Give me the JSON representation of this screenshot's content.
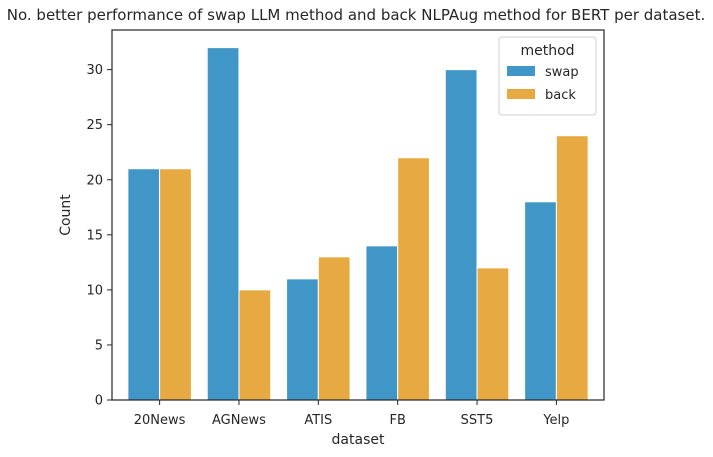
{
  "chart_data": {
    "type": "bar",
    "title": "No. better performance of swap LLM method and back NLPAug method for BERT per dataset.",
    "xlabel": "dataset",
    "ylabel": "Count",
    "categories": [
      "20News",
      "AGNews",
      "ATIS",
      "FB",
      "SST5",
      "Yelp"
    ],
    "series": [
      {
        "name": "swap",
        "values": [
          21,
          32,
          11,
          14,
          30,
          18
        ],
        "color": "#4196c8"
      },
      {
        "name": "back",
        "values": [
          21,
          10,
          13,
          22,
          12,
          24
        ],
        "color": "#e7a941"
      }
    ],
    "ylim": [
      0,
      33.6
    ],
    "yticks": [
      0,
      5,
      10,
      15,
      20,
      25,
      30
    ],
    "grid": false,
    "legend": {
      "title": "method",
      "placement": "top-right"
    }
  }
}
